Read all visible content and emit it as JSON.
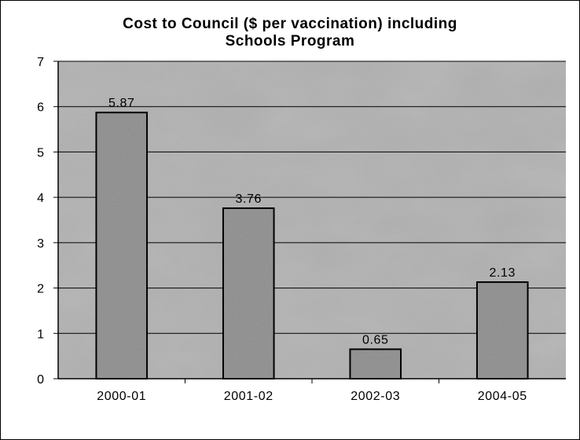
{
  "chart_data": {
    "type": "bar",
    "title_lines": [
      "Cost to Council ($ per vaccination) including",
      "Schools Program"
    ],
    "categories": [
      "2000-01",
      "2001-02",
      "2002-03",
      "2004-05"
    ],
    "values": [
      5.87,
      3.76,
      0.65,
      2.13
    ],
    "data_labels": [
      "5.87",
      "3.76",
      "0.65",
      "2.13"
    ],
    "y_ticks": [
      "0",
      "1",
      "2",
      "3",
      "4",
      "5",
      "6",
      "7"
    ],
    "ylim": [
      0,
      7
    ],
    "xlabel": "",
    "ylabel": "",
    "grid": true,
    "legend": "none",
    "colors": {
      "plot_background": "#b4b4b4",
      "bar_fill": "#9a9a9a",
      "bar_edge": "#000000",
      "gridline": "#000000"
    }
  }
}
